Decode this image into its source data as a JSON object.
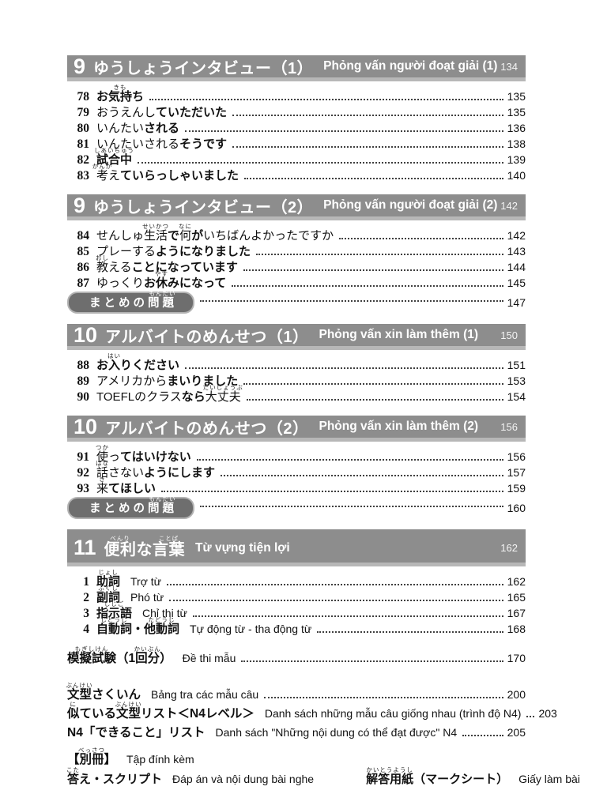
{
  "meta": {
    "description": "Table of contents page of a Japanese JLPT N4 textbook with Vietnamese translations",
    "colors": {
      "header_bar": "#8d8d8d",
      "header_bar_edge": "#b7b7b7",
      "summary_pill": "#6e6e6e",
      "summary_pill_border": "#b3b3b3",
      "text": "#111111"
    }
  },
  "blocks": [
    {
      "kind": "section",
      "header": {
        "number": "9",
        "jp": [
          {
            "t": "ゆうしょうインタビュー（1）"
          }
        ],
        "vi": "Phỏng vấn người đoạt giải (1)",
        "page": "134",
        "tall": false
      },
      "items": [
        {
          "num": "78",
          "segments": [
            {
              "t": "お",
              "b": true
            },
            {
              "t": "気持",
              "r": "きも",
              "b": true
            },
            {
              "t": "ち",
              "b": true
            }
          ],
          "page": "135"
        },
        {
          "num": "79",
          "segments": [
            {
              "t": "おうえんし"
            },
            {
              "t": "ていただいた",
              "b": true
            }
          ],
          "page": "135"
        },
        {
          "num": "80",
          "segments": [
            {
              "t": "いんたい"
            },
            {
              "t": "される",
              "b": true
            }
          ],
          "page": "136"
        },
        {
          "num": "81",
          "segments": [
            {
              "t": "いんたいされる"
            },
            {
              "t": "そうです",
              "b": true
            }
          ],
          "page": "138"
        },
        {
          "num": "82",
          "segments": [
            {
              "t": "試合中",
              "r": "しあいちゅう",
              "b": true
            }
          ],
          "page": "139"
        },
        {
          "num": "83",
          "segments": [
            {
              "t": "考",
              "r": "かんが"
            },
            {
              "t": "え"
            },
            {
              "t": "ていらっしゃいました",
              "b": true
            }
          ],
          "page": "140"
        }
      ]
    },
    {
      "kind": "section",
      "header": {
        "number": "9",
        "jp": [
          {
            "t": "ゆうしょうインタビュー（2）"
          }
        ],
        "vi": "Phỏng vấn người đoạt giải (2)",
        "page": "142",
        "tall": false
      },
      "items": [
        {
          "num": "84",
          "segments": [
            {
              "t": "せんしゅ"
            },
            {
              "t": "生活",
              "r": "せいかつ"
            },
            {
              "t": "で",
              "b": true
            },
            {
              "t": "何",
              "r": "なに"
            },
            {
              "t": "が",
              "b": true
            },
            {
              "t": "いちばんよかったですか"
            }
          ],
          "page": "142"
        },
        {
          "num": "85",
          "segments": [
            {
              "t": "プレーする"
            },
            {
              "t": "ようになりました",
              "b": true
            }
          ],
          "page": "143"
        },
        {
          "num": "86",
          "segments": [
            {
              "t": "教",
              "r": "おし"
            },
            {
              "t": "える"
            },
            {
              "t": "ことになっています",
              "b": true
            }
          ],
          "page": "144"
        },
        {
          "num": "87",
          "segments": [
            {
              "t": "ゆっくり"
            },
            {
              "t": "お",
              "b": true
            },
            {
              "t": "休",
              "r": "やす",
              "b": true
            },
            {
              "t": "みになって",
              "b": true
            }
          ],
          "page": "145"
        }
      ],
      "summary": {
        "segments": [
          {
            "t": "まとめの",
            "b": true
          },
          {
            "t": "問題",
            "r": "もんだい",
            "b": true
          }
        ],
        "page": "147"
      }
    },
    {
      "kind": "section",
      "header": {
        "number": "10",
        "jp": [
          {
            "t": "アルバイトのめんせつ（1）"
          }
        ],
        "vi": "Phỏng vấn xin làm thêm (1)",
        "page": "150",
        "tall": false
      },
      "items": [
        {
          "num": "88",
          "segments": [
            {
              "t": "お",
              "b": true
            },
            {
              "t": "入",
              "r": "はい",
              "b": true
            },
            {
              "t": "りください",
              "b": true
            }
          ],
          "page": "151"
        },
        {
          "num": "89",
          "segments": [
            {
              "t": "アメリカから"
            },
            {
              "t": "まいりました",
              "b": true
            }
          ],
          "page": "153"
        },
        {
          "num": "90",
          "segments": [
            {
              "t": "TOEFLのクラス"
            },
            {
              "t": "なら",
              "b": true
            },
            {
              "t": "大丈夫",
              "r": "だいじょうぶ"
            }
          ],
          "page": "154"
        }
      ]
    },
    {
      "kind": "section",
      "header": {
        "number": "10",
        "jp": [
          {
            "t": "アルバイトのめんせつ（2）"
          }
        ],
        "vi": "Phỏng vấn xin làm thêm (2)",
        "page": "156",
        "tall": false
      },
      "items": [
        {
          "num": "91",
          "segments": [
            {
              "t": "使",
              "r": "つか"
            },
            {
              "t": "っ"
            },
            {
              "t": "てはいけない",
              "b": true
            }
          ],
          "page": "156"
        },
        {
          "num": "92",
          "segments": [
            {
              "t": "話",
              "r": "はな"
            },
            {
              "t": "さない"
            },
            {
              "t": "ようにします",
              "b": true
            }
          ],
          "page": "157"
        },
        {
          "num": "93",
          "segments": [
            {
              "t": "来",
              "r": "き"
            },
            {
              "t": "てほしい",
              "b": true
            }
          ],
          "page": "159"
        }
      ],
      "summary": {
        "segments": [
          {
            "t": "まとめの",
            "b": true
          },
          {
            "t": "問題",
            "r": "もんだい",
            "b": true
          }
        ],
        "page": "160"
      }
    },
    {
      "kind": "section",
      "header": {
        "number": "11",
        "jp": [
          {
            "t": "便利",
            "r": "べんり"
          },
          {
            "t": "な"
          },
          {
            "t": "言葉",
            "r": "ことば"
          }
        ],
        "vi": "Từ vựng tiện lợi",
        "page": "162",
        "tall": true
      },
      "items": [
        {
          "num": "1",
          "segments": [
            {
              "t": "助詞",
              "r": "じょし",
              "b": true
            }
          ],
          "vi": "Trợ từ",
          "page": "162"
        },
        {
          "num": "2",
          "segments": [
            {
              "t": "副詞",
              "r": "ふくし",
              "b": true
            }
          ],
          "vi": "Phó từ",
          "page": "165"
        },
        {
          "num": "3",
          "segments": [
            {
              "t": "指示語",
              "r": "しじご",
              "b": true
            }
          ],
          "vi": "Chỉ thị từ",
          "page": "167"
        },
        {
          "num": "4",
          "segments": [
            {
              "t": "自動詞",
              "r": "じどうし",
              "b": true
            },
            {
              "t": "・",
              "b": true
            },
            {
              "t": "他動詞",
              "r": "たどうし",
              "b": true
            }
          ],
          "vi": "Tự động từ - tha động từ",
          "page": "168"
        }
      ]
    },
    {
      "kind": "spacer",
      "h": 16
    },
    {
      "kind": "free",
      "segments": [
        {
          "t": "模擬試験",
          "r": "もぎしけん",
          "b": true
        },
        {
          "t": "（1",
          "b": true
        },
        {
          "t": "回分",
          "r": "かいぶん",
          "b": true
        },
        {
          "t": "）",
          "b": true
        }
      ],
      "vi": "Đề thi mẫu",
      "page": "170"
    },
    {
      "kind": "spacer",
      "h": 22
    },
    {
      "kind": "free",
      "segments": [
        {
          "t": "文型",
          "r": "ぶんけい",
          "b": true
        },
        {
          "t": "さくいん",
          "b": true
        }
      ],
      "vi": "Bảng tra các mẫu câu",
      "page": "200"
    },
    {
      "kind": "free",
      "segments": [
        {
          "t": "似",
          "r": "に",
          "b": true
        },
        {
          "t": "ている",
          "b": true
        },
        {
          "t": "文型",
          "r": "ぶんけい",
          "b": true
        },
        {
          "t": "リスト＜N4レベル＞",
          "b": true
        }
      ],
      "vi": "Danh sách những mẫu câu giống nhau (trình độ N4)",
      "page": "203"
    },
    {
      "kind": "free",
      "segments": [
        {
          "t": "N4「できること」リスト",
          "b": true
        }
      ],
      "vi": "Danh sách \"Những nội dung có thể đạt được\" N4",
      "page": "205"
    },
    {
      "kind": "spacer",
      "h": 10
    },
    {
      "kind": "free",
      "segments": [
        {
          "t": "【",
          "b": true
        },
        {
          "t": "別冊",
          "r": "べっさつ",
          "b": true
        },
        {
          "t": "】",
          "b": true
        }
      ],
      "vi": "Tập đính kèm",
      "page": null
    },
    {
      "kind": "cols",
      "left": {
        "segments": [
          {
            "t": "答",
            "r": "こた",
            "b": true
          },
          {
            "t": "え・スクリプト",
            "b": true
          }
        ],
        "vi": "Đáp án và nội dung bài nghe"
      },
      "right": {
        "segments": [
          {
            "t": "解答用紙",
            "r": "かいとうようし",
            "b": true
          },
          {
            "t": "（マークシート）",
            "b": true
          }
        ],
        "vi": "Giấy làm bài"
      }
    }
  ]
}
